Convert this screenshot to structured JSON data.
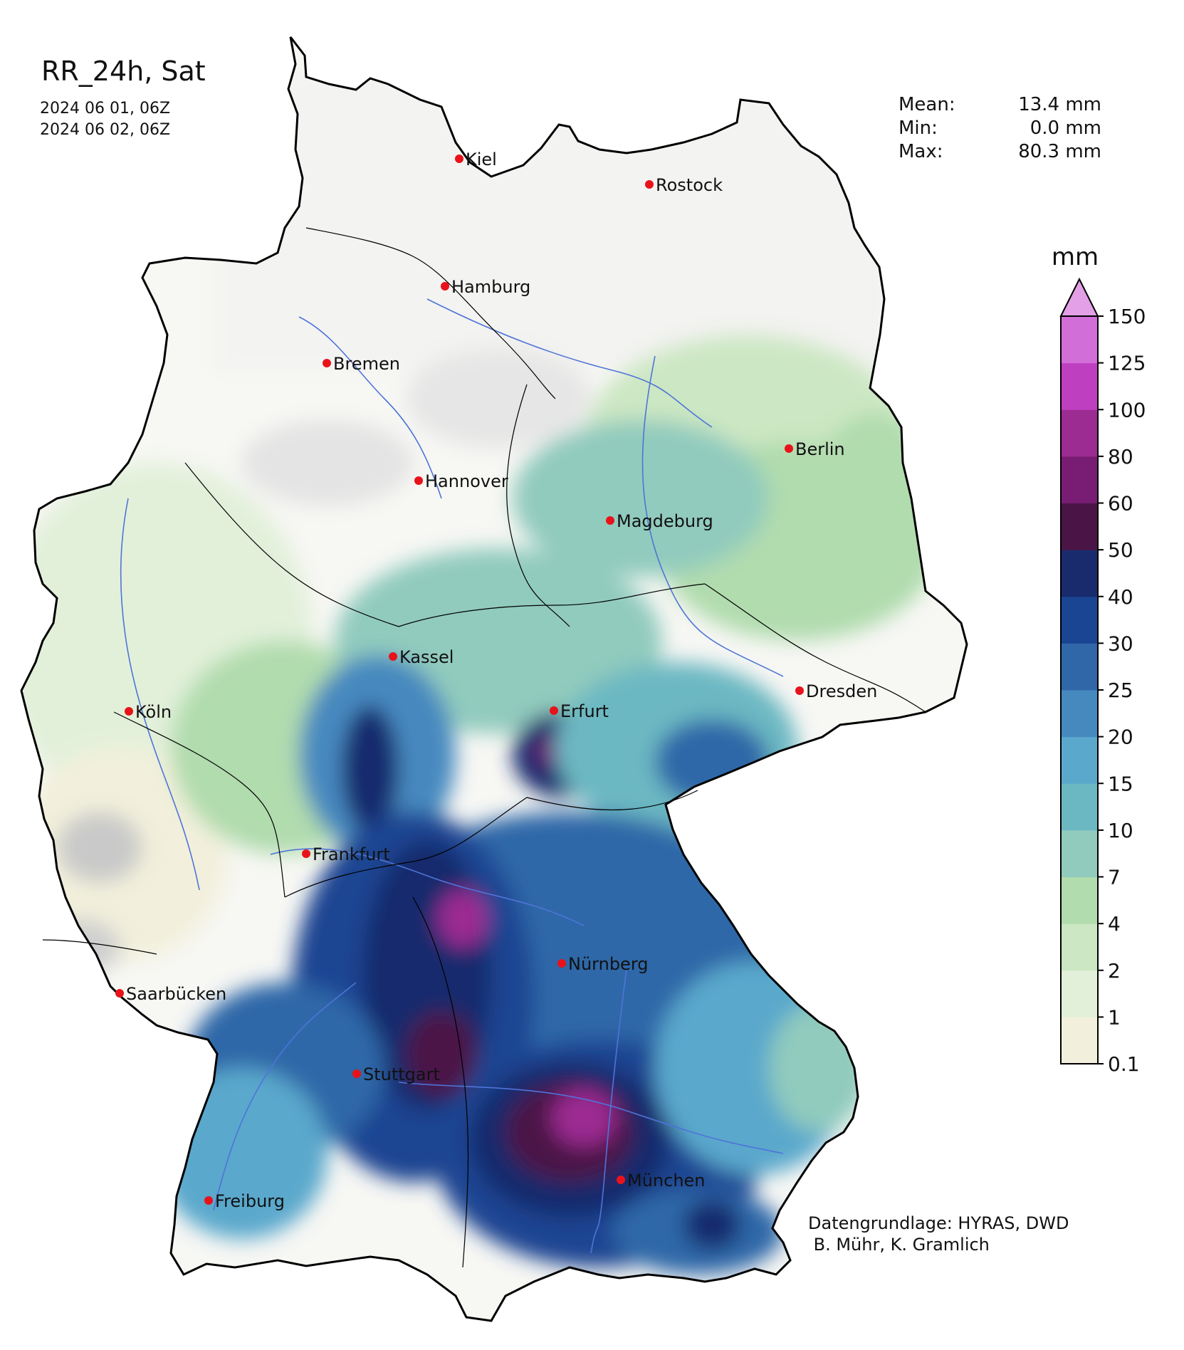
{
  "header": {
    "title": "RR_24h, Sat",
    "period_start": "2024 06 01, 06Z",
    "period_end": "2024 06 02, 06Z"
  },
  "stats": [
    {
      "label": "Mean:",
      "value": "13.4 mm"
    },
    {
      "label": "Min:",
      "value": "0.0 mm"
    },
    {
      "label": "Max:",
      "value": "80.3 mm"
    }
  ],
  "legend": {
    "unit": "mm",
    "levels": [
      "0.1",
      "1",
      "2",
      "4",
      "7",
      "10",
      "15",
      "20",
      "25",
      "30",
      "40",
      "50",
      "60",
      "80",
      "100",
      "125",
      "150"
    ],
    "colors": [
      "#f2f0dc",
      "#e2f0da",
      "#cce7c3",
      "#b1dcae",
      "#91cbbd",
      "#6cb8c2",
      "#5aa8cc",
      "#4689bf",
      "#2f67a8",
      "#1a4592",
      "#192b6d",
      "#4b1446",
      "#781d73",
      "#9c2b92",
      "#bf3fc1",
      "#d16ed8",
      "#e3a0e6"
    ]
  },
  "cities": [
    {
      "name": "Kiel"
    },
    {
      "name": "Rostock"
    },
    {
      "name": "Hamburg"
    },
    {
      "name": "Bremen"
    },
    {
      "name": "Berlin"
    },
    {
      "name": "Hannover"
    },
    {
      "name": "Magdeburg"
    },
    {
      "name": "Kassel"
    },
    {
      "name": "Köln"
    },
    {
      "name": "Erfurt"
    },
    {
      "name": "Dresden"
    },
    {
      "name": "Frankfurt"
    },
    {
      "name": "Nürnberg"
    },
    {
      "name": "Saarbücken"
    },
    {
      "name": "Stuttgart"
    },
    {
      "name": "Freiburg"
    },
    {
      "name": "München"
    }
  ],
  "credits": {
    "line1": "Datengrundlage: HYRAS, DWD",
    "line2": " B. Mühr, K. Gramlich"
  },
  "colors": {
    "city_marker": "#e8131a",
    "border": "#000000",
    "river": "#4f74d8"
  }
}
